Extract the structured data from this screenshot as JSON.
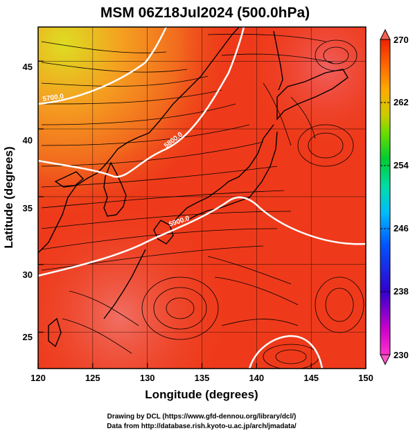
{
  "title": "MSM 06Z18Jul2024 (500.0hPa)",
  "x_axis": {
    "label": "Longitude (degrees)",
    "ticks": [
      "120",
      "125",
      "130",
      "135",
      "140",
      "145",
      "150"
    ]
  },
  "y_axis": {
    "label": "Latitude  (degrees)",
    "ticks": [
      "25",
      "30",
      "35",
      "40",
      "45"
    ]
  },
  "colorbar": {
    "ticks": [
      "270",
      "262",
      "254",
      "246",
      "238",
      "230"
    ],
    "min": 230,
    "max": 270,
    "colors": [
      "#ff33cc",
      "#cc00cc",
      "#3300cc",
      "#0055ff",
      "#00bbff",
      "#00ddaa",
      "#00cc33",
      "#66dd00",
      "#cccc00",
      "#ffaa00",
      "#ff6600",
      "#ee2200"
    ]
  },
  "contours": [
    {
      "label": "5700.0",
      "geopotential_height_m": 5700
    },
    {
      "label": "5800.0",
      "geopotential_height_m": 5800
    },
    {
      "label": "5900.0",
      "geopotential_height_m": 5900
    }
  ],
  "credits": {
    "line1": "Drawing by DCL (https://www.gfd-dennou.org/library/dcl/)",
    "line2": "Data from http://database.rish.kyoto-u.ac.jp/arch/jmadata/"
  },
  "chart_data": {
    "type": "heatmap",
    "title": "MSM 06Z18Jul2024 (500.0hPa)",
    "xlabel": "Longitude (degrees)",
    "ylabel": "Latitude  (degrees)",
    "xlim": [
      120,
      150
    ],
    "ylim": [
      22.4,
      47.6
    ],
    "color_scale_range": [
      230,
      270
    ],
    "contour_levels": [
      5700,
      5800,
      5900
    ],
    "overlay": "wind streamlines",
    "grid": true
  }
}
